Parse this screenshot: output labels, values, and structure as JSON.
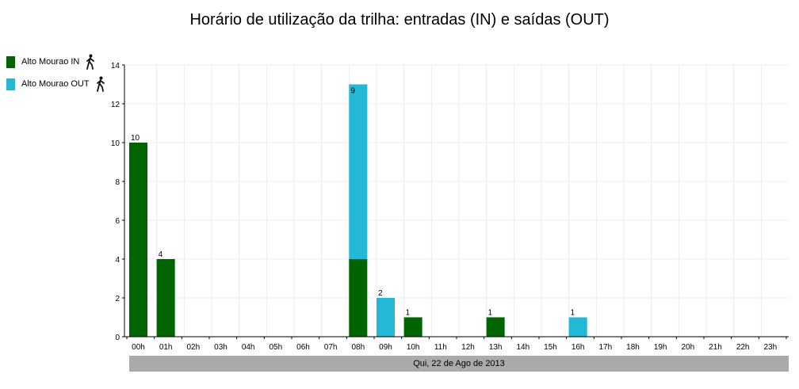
{
  "chart_data": {
    "type": "bar",
    "title": "Horário de utilização da trilha: entradas (IN) e saídas (OUT)",
    "categories": [
      "00h",
      "01h",
      "02h",
      "03h",
      "04h",
      "05h",
      "06h",
      "07h",
      "08h",
      "09h",
      "10h",
      "11h",
      "12h",
      "13h",
      "14h",
      "15h",
      "16h",
      "17h",
      "18h",
      "19h",
      "20h",
      "21h",
      "22h",
      "23h"
    ],
    "stacked": true,
    "series": [
      {
        "name": "Alto Mourao IN",
        "color": "#006400",
        "values": [
          10,
          4,
          0,
          0,
          0,
          0,
          0,
          0,
          4,
          0,
          1,
          0,
          0,
          1,
          0,
          0,
          0,
          0,
          0,
          0,
          0,
          0,
          0,
          0
        ]
      },
      {
        "name": "Alto Mourao OUT",
        "color": "#22b8d6",
        "values": [
          0,
          0,
          0,
          0,
          0,
          0,
          0,
          0,
          9,
          2,
          0,
          0,
          0,
          0,
          0,
          0,
          1,
          0,
          0,
          0,
          0,
          0,
          0,
          0
        ]
      }
    ],
    "ylim": [
      0,
      14
    ],
    "yticks": [
      0,
      2,
      4,
      6,
      8,
      10,
      12,
      14
    ],
    "grid": true,
    "legend": "left",
    "xlabel": "Qui, 22 de Ago de 2013",
    "ylabel": ""
  },
  "icons": {
    "legend_marker": "walking-person-icon"
  }
}
